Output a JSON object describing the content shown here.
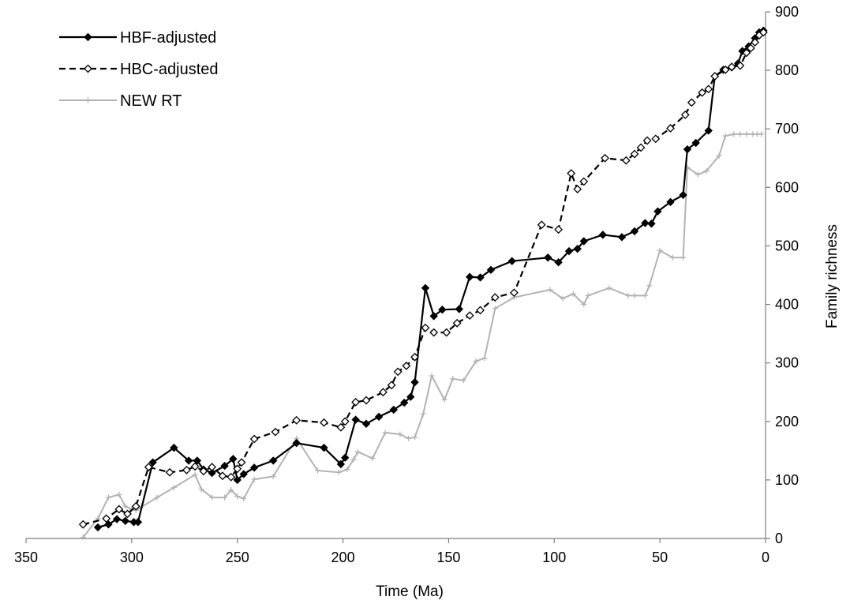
{
  "chart_data": {
    "type": "line",
    "xlabel": "Time (Ma)",
    "ylabel": "Family richness",
    "xlim": [
      350,
      0
    ],
    "ylim": [
      0,
      900
    ],
    "x_reversed": true,
    "xticks": [
      350,
      300,
      250,
      200,
      150,
      100,
      50,
      0
    ],
    "yticks": [
      0,
      100,
      200,
      300,
      400,
      500,
      600,
      700,
      800,
      900
    ],
    "y_axis_side": "right",
    "grid": false,
    "legend_position": "top-left",
    "series": [
      {
        "name": "HBF-adjusted",
        "color": "#000000",
        "style": "solid",
        "marker": "filled-diamond",
        "points": [
          [
            299,
            28
          ],
          [
            303,
            30
          ],
          [
            307,
            33
          ],
          [
            311,
            24
          ],
          [
            316,
            19
          ],
          [
            297,
            28
          ],
          [
            290,
            130
          ],
          [
            280,
            155
          ],
          [
            273,
            133
          ],
          [
            269,
            133
          ],
          [
            266,
            118
          ],
          [
            262,
            112
          ],
          [
            256,
            124
          ],
          [
            252,
            136
          ],
          [
            250,
            100
          ],
          [
            247,
            110
          ],
          [
            242,
            121
          ],
          [
            233,
            133
          ],
          [
            222,
            163
          ],
          [
            209,
            155
          ],
          [
            201,
            127
          ],
          [
            199,
            138
          ],
          [
            194,
            203
          ],
          [
            189,
            196
          ],
          [
            183,
            208
          ],
          [
            176,
            220
          ],
          [
            171,
            232
          ],
          [
            168,
            242
          ],
          [
            166,
            267
          ],
          [
            161,
            428
          ],
          [
            157,
            380
          ],
          [
            153,
            391
          ],
          [
            145,
            392
          ],
          [
            140,
            447
          ],
          [
            135,
            446
          ],
          [
            130,
            459
          ],
          [
            120,
            474
          ],
          [
            103,
            480
          ],
          [
            98,
            472
          ],
          [
            93,
            491
          ],
          [
            89,
            495
          ],
          [
            86,
            508
          ],
          [
            77,
            519
          ],
          [
            68,
            515
          ],
          [
            62,
            525
          ],
          [
            57,
            539
          ],
          [
            54,
            538
          ],
          [
            51,
            559
          ],
          [
            45,
            575
          ],
          [
            39,
            587
          ],
          [
            37,
            665
          ],
          [
            33,
            676
          ],
          [
            27,
            697
          ],
          [
            24,
            790
          ],
          [
            20,
            801
          ],
          [
            16,
            805
          ],
          [
            13,
            812
          ],
          [
            11,
            833
          ],
          [
            8,
            841
          ],
          [
            5,
            855
          ],
          [
            3,
            865
          ],
          [
            1,
            868
          ]
        ]
      },
      {
        "name": "HBC-adjusted",
        "color": "#000000",
        "style": "dashed",
        "marker": "open-diamond",
        "points": [
          [
            323,
            24
          ],
          [
            312,
            34
          ],
          [
            306,
            50
          ],
          [
            302,
            42
          ],
          [
            298,
            55
          ],
          [
            292,
            122
          ],
          [
            282,
            113
          ],
          [
            274,
            117
          ],
          [
            270,
            123
          ],
          [
            266,
            115
          ],
          [
            262,
            122
          ],
          [
            257,
            107
          ],
          [
            253,
            105
          ],
          [
            250,
            119
          ],
          [
            248,
            130
          ],
          [
            242,
            170
          ],
          [
            232,
            182
          ],
          [
            222,
            202
          ],
          [
            209,
            198
          ],
          [
            201,
            190
          ],
          [
            199,
            200
          ],
          [
            194,
            233
          ],
          [
            189,
            236
          ],
          [
            181,
            250
          ],
          [
            177,
            262
          ],
          [
            174,
            285
          ],
          [
            170,
            295
          ],
          [
            166,
            310
          ],
          [
            161,
            360
          ],
          [
            157,
            352
          ],
          [
            151,
            352
          ],
          [
            146,
            368
          ],
          [
            140,
            381
          ],
          [
            135,
            390
          ],
          [
            128,
            412
          ],
          [
            119,
            420
          ],
          [
            106,
            536
          ],
          [
            98,
            528
          ],
          [
            92,
            624
          ],
          [
            89,
            597
          ],
          [
            86,
            610
          ],
          [
            76,
            650
          ],
          [
            66,
            646
          ],
          [
            62,
            657
          ],
          [
            59,
            668
          ],
          [
            56,
            680
          ],
          [
            52,
            683
          ],
          [
            45,
            701
          ],
          [
            38,
            724
          ],
          [
            35,
            745
          ],
          [
            30,
            762
          ],
          [
            27,
            768
          ],
          [
            24,
            790
          ],
          [
            19,
            801
          ],
          [
            16,
            806
          ],
          [
            12,
            808
          ],
          [
            9,
            830
          ],
          [
            7,
            838
          ],
          [
            5,
            848
          ],
          [
            3,
            860
          ],
          [
            1,
            865
          ]
        ]
      },
      {
        "name": "NEW RT",
        "color": "#b3b3b3",
        "style": "solid",
        "marker": "plus",
        "points": [
          [
            323,
            2
          ],
          [
            316,
            34
          ],
          [
            311,
            70
          ],
          [
            306,
            75
          ],
          [
            303,
            55
          ],
          [
            300,
            50
          ],
          [
            298,
            48
          ],
          [
            288,
            70
          ],
          [
            280,
            87
          ],
          [
            270,
            109
          ],
          [
            267,
            84
          ],
          [
            262,
            70
          ],
          [
            256,
            70
          ],
          [
            253,
            83
          ],
          [
            250,
            72
          ],
          [
            247,
            68
          ],
          [
            242,
            101
          ],
          [
            233,
            106
          ],
          [
            222,
            171
          ],
          [
            212,
            116
          ],
          [
            202,
            113
          ],
          [
            198,
            118
          ],
          [
            195,
            135
          ],
          [
            193,
            148
          ],
          [
            186,
            137
          ],
          [
            180,
            181
          ],
          [
            173,
            178
          ],
          [
            169,
            171
          ],
          [
            166,
            173
          ],
          [
            162,
            213
          ],
          [
            158,
            278
          ],
          [
            152,
            237
          ],
          [
            148,
            273
          ],
          [
            143,
            270
          ],
          [
            137,
            303
          ],
          [
            133,
            308
          ],
          [
            128,
            393
          ],
          [
            119,
            412
          ],
          [
            102,
            425
          ],
          [
            96,
            410
          ],
          [
            91,
            418
          ],
          [
            86,
            400
          ],
          [
            84,
            415
          ],
          [
            74,
            428
          ],
          [
            65,
            415
          ],
          [
            62,
            415
          ],
          [
            57,
            415
          ],
          [
            55,
            432
          ],
          [
            50,
            492
          ],
          [
            44,
            480
          ],
          [
            39,
            480
          ],
          [
            37,
            634
          ],
          [
            32,
            622
          ],
          [
            28,
            628
          ],
          [
            22,
            654
          ],
          [
            19,
            688
          ],
          [
            15,
            691
          ],
          [
            12,
            691
          ],
          [
            9,
            691
          ],
          [
            6,
            691
          ],
          [
            4,
            691
          ],
          [
            2,
            691
          ]
        ]
      }
    ]
  }
}
